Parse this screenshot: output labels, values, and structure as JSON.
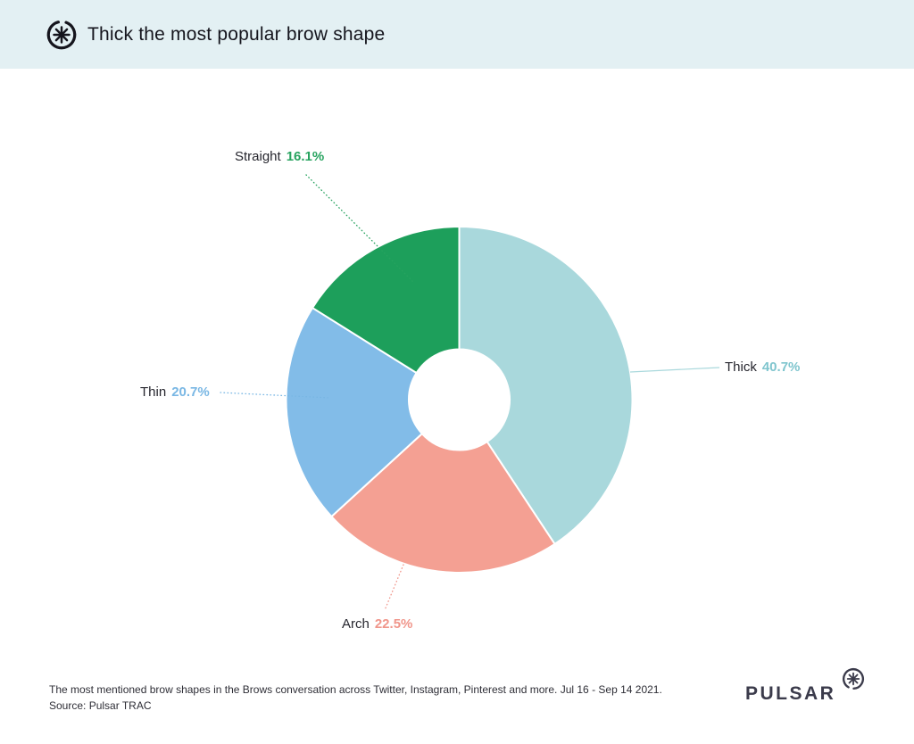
{
  "header": {
    "title": "Thick the most popular brow shape",
    "logo_icon": "pulsar-asterisk-icon"
  },
  "chart_data": {
    "type": "pie",
    "variant": "donut",
    "title": "Thick the most popular brow shape",
    "unit": "%",
    "start_angle_deg": 0,
    "direction": "clockwise",
    "slices": [
      {
        "label": "Thick",
        "value": 40.7,
        "pct": "40.7%",
        "color": "#a9d8dc",
        "value_color": "#7fc5ce",
        "leader": "solid"
      },
      {
        "label": "Arch",
        "value": 22.5,
        "pct": "22.5%",
        "color": "#f4a093",
        "value_color": "#f0958a",
        "leader": "dotted"
      },
      {
        "label": "Thin",
        "value": 20.7,
        "pct": "20.7%",
        "color": "#82bce8",
        "value_color": "#79b7e4",
        "leader": "dotted"
      },
      {
        "label": "Straight",
        "value": 16.1,
        "pct": "16.1%",
        "color": "#1d9f5b",
        "value_color": "#27a35f",
        "leader": "dotted"
      }
    ]
  },
  "footer": {
    "caption": "The most mentioned brow shapes in the Brows conversation across Twitter, Instagram, Pinterest and more. Jul 16 - Sep 14 2021.",
    "source": "Source: Pulsar TRAC",
    "brand": "PULSAR"
  },
  "colors": {
    "header_bg": "#e3f0f3",
    "text_dark": "#26262e",
    "brand_dark": "#3b3b4b",
    "background": "#ffffff"
  }
}
